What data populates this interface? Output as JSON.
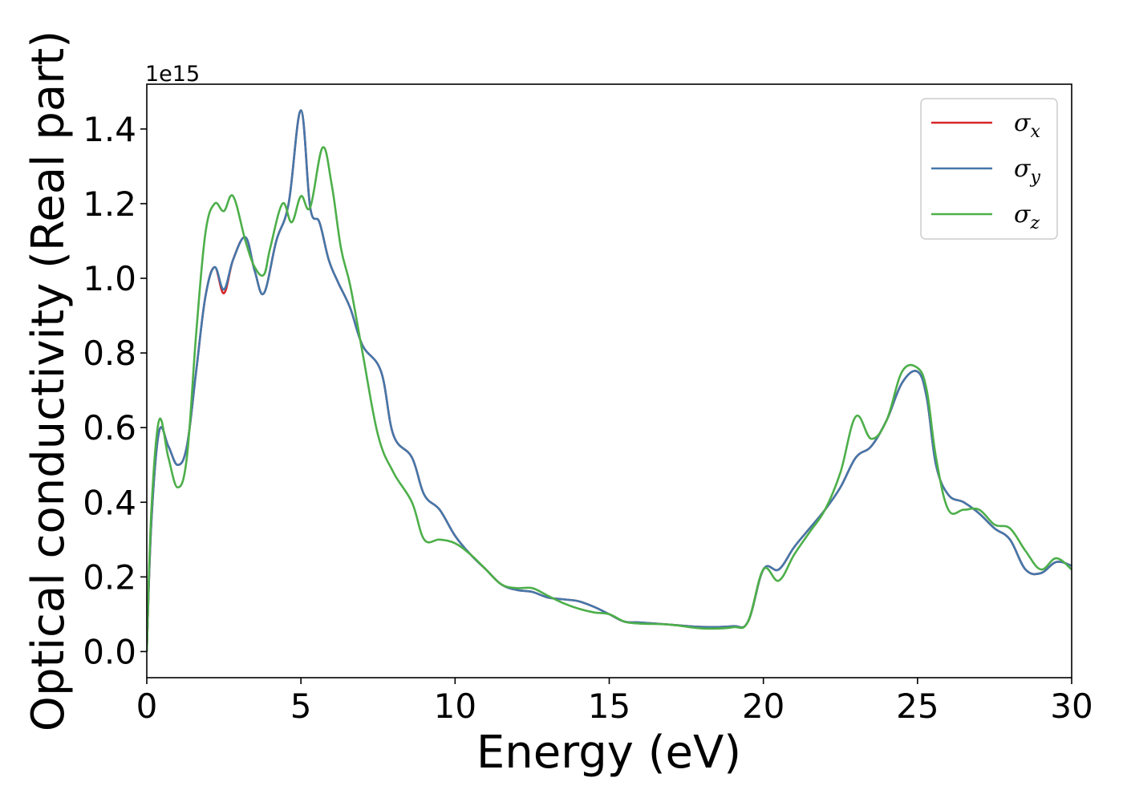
{
  "chart_data": {
    "type": "line",
    "xlabel": "Energy (eV)",
    "ylabel": "Optical conductivity (Real part)",
    "y_offset_text": "1e15",
    "xlim": [
      0,
      30
    ],
    "ylim": [
      -0.07,
      1.52
    ],
    "x_ticks": [
      0,
      5,
      10,
      15,
      20,
      25,
      30
    ],
    "x_tick_labels": [
      "0",
      "5",
      "10",
      "15",
      "20",
      "25",
      "30"
    ],
    "y_ticks": [
      0.0,
      0.2,
      0.4,
      0.6,
      0.8,
      1.0,
      1.2,
      1.4
    ],
    "y_tick_labels": [
      "0.0",
      "0.2",
      "0.4",
      "0.6",
      "0.8",
      "1.0",
      "1.2",
      "1.4"
    ],
    "grid": false,
    "legend_position": "top-right",
    "series": [
      {
        "name": "σ",
        "subscript": "x",
        "color": "#d62728",
        "x": [
          0,
          0.15,
          0.4,
          0.7,
          1.0,
          1.3,
          1.6,
          1.9,
          2.2,
          2.5,
          2.8,
          3.2,
          3.5,
          3.8,
          4.2,
          4.6,
          5.0,
          5.3,
          5.6,
          5.9,
          6.2,
          6.6,
          7.0,
          7.6,
          8.0,
          8.6,
          9.0,
          9.5,
          10.0,
          10.5,
          11.0,
          11.5,
          12.0,
          12.5,
          13.0,
          13.5,
          14.0,
          14.5,
          15.0,
          15.5,
          16.0,
          17.0,
          18.0,
          19.0,
          19.5,
          20.0,
          20.5,
          21.0,
          21.5,
          22.0,
          22.5,
          23.0,
          23.5,
          24.0,
          24.5,
          25.0,
          25.3,
          25.6,
          26.0,
          26.5,
          27.0,
          27.5,
          28.0,
          28.5,
          29.0,
          29.5,
          30.0
        ],
        "values": [
          0.0,
          0.35,
          0.59,
          0.55,
          0.5,
          0.55,
          0.75,
          0.95,
          1.03,
          0.96,
          1.05,
          1.11,
          1.02,
          0.96,
          1.1,
          1.2,
          1.45,
          1.19,
          1.15,
          1.05,
          0.99,
          0.92,
          0.82,
          0.75,
          0.58,
          0.52,
          0.42,
          0.38,
          0.31,
          0.26,
          0.22,
          0.18,
          0.165,
          0.16,
          0.145,
          0.14,
          0.135,
          0.12,
          0.1,
          0.08,
          0.078,
          0.072,
          0.066,
          0.068,
          0.08,
          0.22,
          0.22,
          0.28,
          0.33,
          0.38,
          0.44,
          0.52,
          0.55,
          0.62,
          0.72,
          0.75,
          0.68,
          0.5,
          0.42,
          0.4,
          0.37,
          0.33,
          0.3,
          0.22,
          0.21,
          0.24,
          0.23
        ]
      },
      {
        "name": "σ",
        "subscript": "y",
        "color": "#4477aa",
        "x": [
          0,
          0.15,
          0.4,
          0.7,
          1.0,
          1.3,
          1.6,
          1.9,
          2.2,
          2.5,
          2.8,
          3.2,
          3.5,
          3.8,
          4.2,
          4.6,
          5.0,
          5.3,
          5.6,
          5.9,
          6.2,
          6.6,
          7.0,
          7.6,
          8.0,
          8.6,
          9.0,
          9.5,
          10.0,
          10.5,
          11.0,
          11.5,
          12.0,
          12.5,
          13.0,
          13.5,
          14.0,
          14.5,
          15.0,
          15.5,
          16.0,
          17.0,
          18.0,
          19.0,
          19.5,
          20.0,
          20.5,
          21.0,
          21.5,
          22.0,
          22.5,
          23.0,
          23.5,
          24.0,
          24.5,
          25.0,
          25.3,
          25.6,
          26.0,
          26.5,
          27.0,
          27.5,
          28.0,
          28.5,
          29.0,
          29.5,
          30.0
        ],
        "values": [
          0.0,
          0.35,
          0.59,
          0.55,
          0.5,
          0.55,
          0.75,
          0.95,
          1.03,
          0.97,
          1.05,
          1.11,
          1.02,
          0.96,
          1.1,
          1.2,
          1.45,
          1.19,
          1.15,
          1.05,
          0.99,
          0.92,
          0.82,
          0.75,
          0.58,
          0.52,
          0.42,
          0.38,
          0.31,
          0.26,
          0.22,
          0.18,
          0.165,
          0.16,
          0.145,
          0.14,
          0.135,
          0.12,
          0.1,
          0.08,
          0.078,
          0.072,
          0.066,
          0.068,
          0.08,
          0.22,
          0.22,
          0.28,
          0.33,
          0.38,
          0.44,
          0.52,
          0.55,
          0.62,
          0.72,
          0.75,
          0.68,
          0.5,
          0.42,
          0.4,
          0.37,
          0.33,
          0.3,
          0.22,
          0.21,
          0.24,
          0.23
        ]
      },
      {
        "name": "σ",
        "subscript": "z",
        "color": "#4daf4a",
        "x": [
          0,
          0.15,
          0.4,
          0.7,
          1.0,
          1.3,
          1.6,
          1.9,
          2.2,
          2.5,
          2.8,
          3.2,
          3.5,
          3.8,
          4.0,
          4.4,
          4.7,
          5.0,
          5.3,
          5.7,
          6.0,
          6.3,
          6.6,
          7.0,
          7.5,
          8.0,
          8.6,
          9.0,
          9.5,
          10.0,
          10.5,
          11.0,
          11.5,
          12.0,
          12.5,
          13.0,
          13.5,
          14.0,
          14.5,
          15.0,
          15.5,
          16.0,
          17.0,
          18.0,
          19.0,
          19.5,
          20.0,
          20.5,
          21.0,
          21.5,
          22.0,
          22.5,
          23.0,
          23.5,
          24.0,
          24.5,
          25.0,
          25.3,
          25.6,
          26.0,
          26.5,
          27.0,
          27.5,
          28.0,
          28.5,
          29.0,
          29.5,
          30.0
        ],
        "values": [
          0.0,
          0.38,
          0.62,
          0.52,
          0.44,
          0.52,
          0.85,
          1.12,
          1.2,
          1.18,
          1.22,
          1.1,
          1.03,
          1.01,
          1.08,
          1.2,
          1.15,
          1.22,
          1.19,
          1.35,
          1.25,
          1.08,
          0.98,
          0.8,
          0.58,
          0.48,
          0.4,
          0.3,
          0.3,
          0.29,
          0.26,
          0.22,
          0.18,
          0.17,
          0.17,
          0.15,
          0.13,
          0.115,
          0.105,
          0.1,
          0.08,
          0.075,
          0.072,
          0.062,
          0.065,
          0.08,
          0.22,
          0.19,
          0.26,
          0.32,
          0.38,
          0.48,
          0.63,
          0.57,
          0.62,
          0.75,
          0.76,
          0.7,
          0.52,
          0.38,
          0.38,
          0.38,
          0.34,
          0.33,
          0.27,
          0.22,
          0.25,
          0.22
        ]
      }
    ]
  }
}
